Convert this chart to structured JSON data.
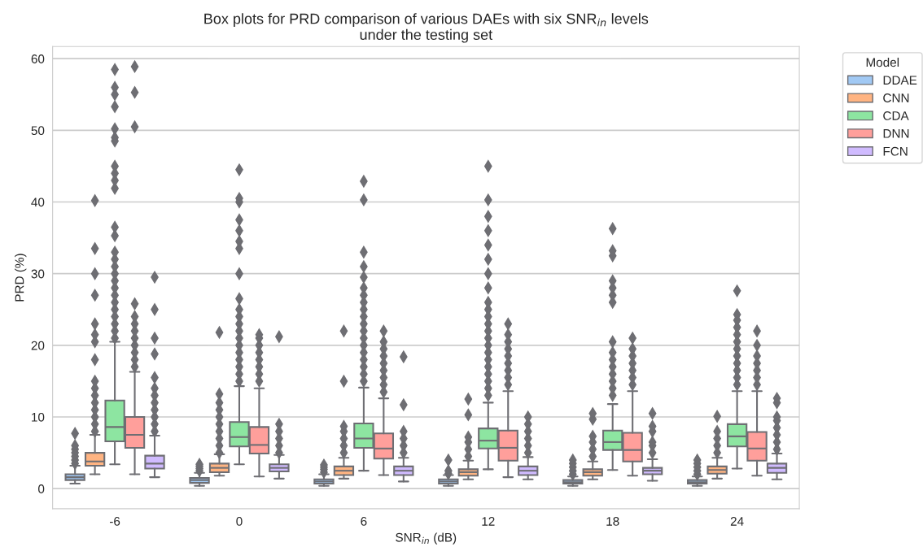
{
  "chart_data": {
    "type": "box",
    "title": "Box plots for PRD comparison of various DAEs with six SNR$_{in}$ levels\nunder the testing set",
    "xlabel": "SNR$_{in}$ (dB)",
    "ylabel": "PRD (%)",
    "legend_title": "Model",
    "legend": "top right",
    "grid": "y",
    "marker": "diamond",
    "categories": [
      "-6",
      "0",
      "6",
      "12",
      "18",
      "24"
    ],
    "ylim": [
      -2.8,
      61.7
    ],
    "yticks": [
      0,
      10,
      20,
      30,
      40,
      50,
      60
    ],
    "series": [
      {
        "name": "DDAE",
        "color": "#a1c9f4",
        "boxes": [
          {
            "low": 0.7,
            "q1": 1.2,
            "median": 1.6,
            "q3": 2.0,
            "high": 3.2,
            "outliers": [
              3.5,
              4,
              4.5,
              5,
              5.5,
              6,
              7.7
            ]
          },
          {
            "low": 0.4,
            "q1": 0.8,
            "median": 1.2,
            "q3": 1.5,
            "high": 2.2,
            "outliers": [
              2.5,
              2.8,
              3.1,
              3.4
            ]
          },
          {
            "low": 0.4,
            "q1": 0.7,
            "median": 1.0,
            "q3": 1.3,
            "high": 2.0,
            "outliers": [
              2.3,
              2.7,
              3.0,
              3.3
            ]
          },
          {
            "low": 0.4,
            "q1": 0.7,
            "median": 1.0,
            "q3": 1.3,
            "high": 1.9,
            "outliers": [
              2.1,
              2.5,
              4
            ]
          },
          {
            "low": 0.4,
            "q1": 0.7,
            "median": 0.9,
            "q3": 1.2,
            "high": 1.7,
            "outliers": [
              2,
              2.5,
              3,
              3.5,
              4
            ]
          },
          {
            "low": 0.4,
            "q1": 0.7,
            "median": 0.9,
            "q3": 1.2,
            "high": 1.7,
            "outliers": [
              2,
              2.5,
              3,
              3.5,
              4
            ]
          }
        ]
      },
      {
        "name": "CNN",
        "color": "#ffb482",
        "boxes": [
          {
            "low": 2.0,
            "q1": 3.2,
            "median": 3.8,
            "q3": 5.0,
            "high": 7.5,
            "outliers": [
              8,
              9,
              10,
              11,
              12,
              13,
              14,
              15,
              18,
              20.5,
              21.5,
              23,
              27,
              30,
              33.5,
              40.2
            ]
          },
          {
            "low": 1.8,
            "q1": 2.3,
            "median": 2.9,
            "q3": 3.5,
            "high": 4.8,
            "outliers": [
              5,
              6,
              7,
              8,
              9,
              10,
              11,
              12,
              13.2,
              21.8
            ]
          },
          {
            "low": 1.4,
            "q1": 1.9,
            "median": 2.5,
            "q3": 3.1,
            "high": 4.3,
            "outliers": [
              5,
              6,
              7,
              8,
              8.7,
              15,
              22
            ]
          },
          {
            "low": 1.3,
            "q1": 1.8,
            "median": 2.3,
            "q3": 2.7,
            "high": 3.9,
            "outliers": [
              4.5,
              5.5,
              6.5,
              7.2,
              10.3,
              12.5
            ]
          },
          {
            "low": 1.3,
            "q1": 1.8,
            "median": 2.3,
            "q3": 2.7,
            "high": 3.8,
            "outliers": [
              4.5,
              5.5,
              6.5,
              7.3,
              9.7,
              10.5
            ]
          },
          {
            "low": 1.4,
            "q1": 2.1,
            "median": 2.6,
            "q3": 3.1,
            "high": 4.3,
            "outliers": [
              5,
              6,
              7,
              8,
              10.1
            ]
          }
        ]
      },
      {
        "name": "CDA",
        "color": "#8de5a1",
        "boxes": [
          {
            "low": 3.4,
            "q1": 6.6,
            "median": 8.6,
            "q3": 12.3,
            "high": 20.5,
            "outliers": [
              21,
              22,
              23,
              24,
              25,
              26,
              27,
              28,
              29,
              30,
              31,
              32,
              33,
              35.3,
              36.5,
              41.9,
              43,
              44,
              45,
              48.5,
              49,
              50.2,
              53.3,
              55,
              56,
              58.5
            ]
          },
          {
            "low": 3.4,
            "q1": 5.9,
            "median": 7.2,
            "q3": 9.3,
            "high": 14.3,
            "outliers": [
              15,
              16,
              17,
              18,
              19,
              20,
              21,
              22,
              23,
              24,
              25,
              26.5,
              30,
              33.5,
              34.5,
              36,
              37.5,
              40,
              40.5,
              44.5
            ]
          },
          {
            "low": 2.5,
            "q1": 5.7,
            "median": 7.0,
            "q3": 9.1,
            "high": 14.1,
            "outliers": [
              15,
              16,
              17,
              18,
              19,
              20,
              21,
              22,
              23,
              24,
              25,
              26,
              27,
              28,
              29.5,
              31,
              33,
              40.3,
              42.9
            ]
          },
          {
            "low": 2.7,
            "q1": 5.6,
            "median": 6.7,
            "q3": 8.4,
            "high": 12.0,
            "outliers": [
              13,
              14,
              15,
              16,
              17,
              18,
              19,
              20,
              21,
              22,
              23,
              24,
              25,
              26,
              28,
              30,
              32,
              34,
              36,
              38,
              40.3,
              45
            ]
          },
          {
            "low": 2.6,
            "q1": 5.4,
            "median": 6.5,
            "q3": 8.1,
            "high": 11.8,
            "outliers": [
              13,
              14,
              15,
              16,
              17,
              18,
              19,
              20.5,
              26,
              27,
              28,
              29,
              32.5,
              33.2,
              36.3
            ]
          },
          {
            "low": 2.8,
            "q1": 5.9,
            "median": 7.3,
            "q3": 9.0,
            "high": 13.6,
            "outliers": [
              14.5,
              15.5,
              16.5,
              17.5,
              18.5,
              19.5,
              20.5,
              21.5,
              22.5,
              23.5,
              24.3,
              27.6
            ]
          }
        ]
      },
      {
        "name": "DNN",
        "color": "#ff9f9b",
        "boxes": [
          {
            "low": 2.0,
            "q1": 5.7,
            "median": 7.5,
            "q3": 10.0,
            "high": 16.3,
            "outliers": [
              17,
              18,
              19,
              20,
              21,
              22,
              23,
              24,
              25.8,
              50.5,
              55.3,
              58.9
            ]
          },
          {
            "low": 1.7,
            "q1": 4.9,
            "median": 6.1,
            "q3": 8.6,
            "high": 14.0,
            "outliers": [
              15,
              16,
              17,
              18,
              19,
              20,
              21,
              21.5
            ]
          },
          {
            "low": 1.9,
            "q1": 4.2,
            "median": 5.6,
            "q3": 7.7,
            "high": 12.6,
            "outliers": [
              13.5,
              14.5,
              15.5,
              16.5,
              17.5,
              18.5,
              19.5,
              20.5,
              22
            ]
          },
          {
            "low": 1.6,
            "q1": 3.9,
            "median": 5.7,
            "q3": 8.1,
            "high": 13.6,
            "outliers": [
              14.5,
              15.5,
              16.5,
              17.5,
              18.5,
              19.5,
              20.5,
              21.5,
              23
            ]
          },
          {
            "low": 1.8,
            "q1": 3.8,
            "median": 5.4,
            "q3": 7.8,
            "high": 13.6,
            "outliers": [
              14.5,
              15.5,
              16.5,
              17.5,
              18.5,
              19.5,
              21
            ]
          },
          {
            "low": 1.8,
            "q1": 3.9,
            "median": 5.6,
            "q3": 7.9,
            "high": 13.6,
            "outliers": [
              14.5,
              15.5,
              16.5,
              17.5,
              18.5,
              20,
              22
            ]
          }
        ]
      },
      {
        "name": "FCN",
        "color": "#d0bbff",
        "boxes": [
          {
            "low": 1.6,
            "q1": 2.8,
            "median": 3.5,
            "q3": 4.6,
            "high": 7.4,
            "outliers": [
              8,
              9,
              10,
              11,
              12,
              13,
              14,
              15.5,
              18.8,
              21,
              25,
              29.5
            ]
          },
          {
            "low": 1.4,
            "q1": 2.4,
            "median": 2.9,
            "q3": 3.4,
            "high": 4.7,
            "outliers": [
              5,
              6,
              7,
              8,
              9,
              21.2
            ]
          },
          {
            "low": 1.0,
            "q1": 1.9,
            "median": 2.5,
            "q3": 3.1,
            "high": 4.3,
            "outliers": [
              5,
              6,
              7,
              8,
              11.7,
              18.4
            ]
          },
          {
            "low": 1.3,
            "q1": 1.9,
            "median": 2.5,
            "q3": 3.1,
            "high": 4.4,
            "outliers": [
              5,
              6,
              7,
              8,
              9,
              10
            ]
          },
          {
            "low": 1.1,
            "q1": 2.0,
            "median": 2.5,
            "q3": 2.9,
            "high": 4.1,
            "outliers": [
              5,
              6,
              6.5,
              8,
              8.7,
              10.5
            ]
          },
          {
            "low": 1.3,
            "q1": 2.2,
            "median": 2.9,
            "q3": 3.5,
            "high": 4.9,
            "outliers": [
              5.5,
              6.5,
              7.5,
              8.5,
              9.5,
              10,
              12,
              12.6
            ]
          }
        ]
      }
    ]
  }
}
